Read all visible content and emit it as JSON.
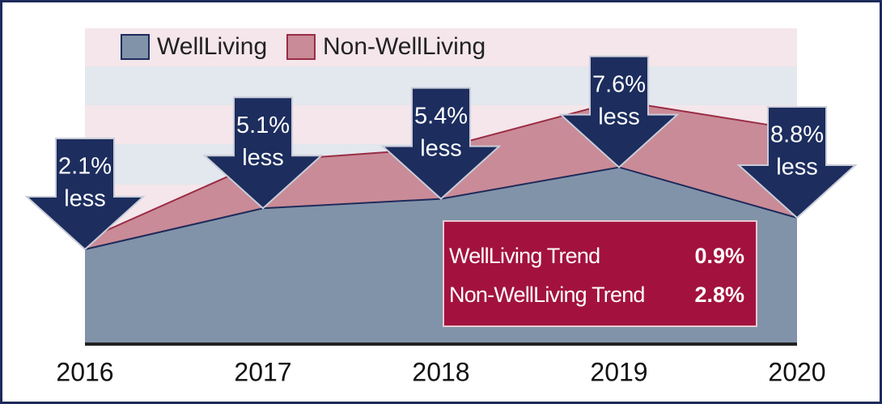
{
  "chart_data": {
    "type": "area",
    "categories": [
      "2016",
      "2017",
      "2018",
      "2019",
      "2020"
    ],
    "ylim": [
      0,
      100
    ],
    "series": [
      {
        "name": "WellLiving",
        "color": "#8193a9",
        "line_color": "#1e2a5a",
        "values": [
          30,
          43,
          46,
          56,
          40
        ]
      },
      {
        "name": "Non-WellLiving",
        "color": "#c98b97",
        "line_color": "#9a2c45",
        "values": [
          33,
          58,
          62,
          77,
          68
        ]
      }
    ],
    "annotations": [
      [
        "2.1%",
        "less"
      ],
      [
        "5.1%",
        "less"
      ],
      [
        "5.4%",
        "less"
      ],
      [
        "7.6%",
        "less"
      ],
      [
        "8.8%",
        "less"
      ]
    ],
    "trend_box": {
      "color": "#a3123f",
      "rows": [
        {
          "label": "WellLiving Trend",
          "value": "0.9%"
        },
        {
          "label": "Non-WellLiving Trend",
          "value": "2.8%"
        }
      ]
    }
  }
}
